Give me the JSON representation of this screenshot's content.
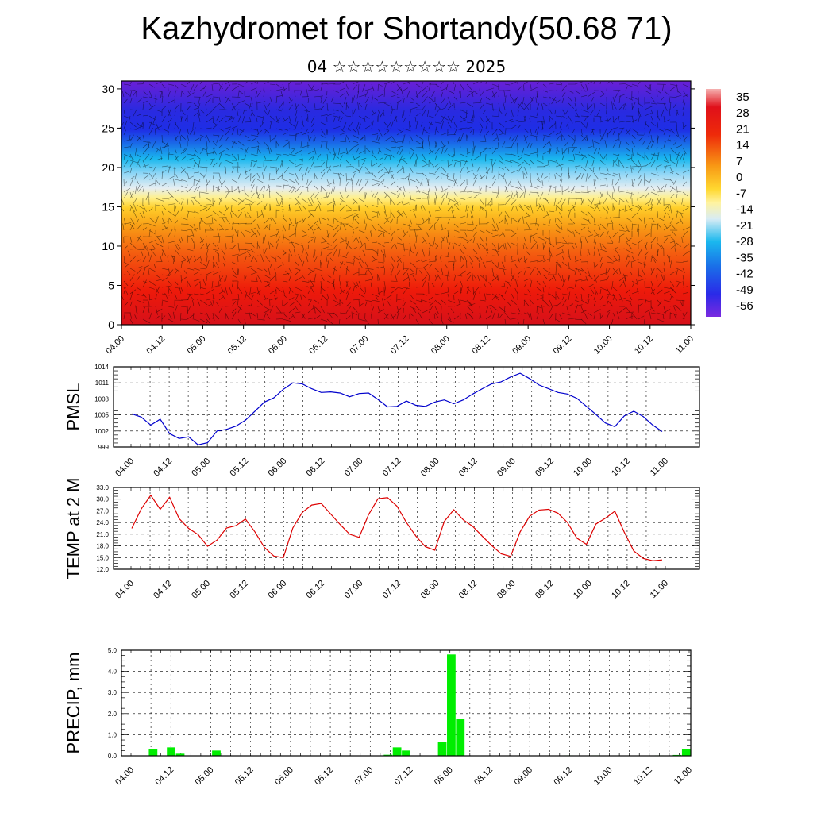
{
  "header": {
    "title": "Kazhydromet for Shortandy(50.68 71)",
    "subtitle": "04 ☆☆☆☆☆☆☆☆☆ 2025"
  },
  "chart_data": [
    {
      "type": "heatmap",
      "xlabel": "",
      "ylabel": "",
      "x_tick_labels": [
        "04.00",
        "04.12",
        "05.00",
        "05.12",
        "06.00",
        "06.12",
        "07.00",
        "07.12",
        "08.00",
        "08.12",
        "09.00",
        "09.12",
        "10.00",
        "10.12",
        "11.00"
      ],
      "ylim": [
        0,
        31
      ],
      "y_ticks": [
        0,
        5,
        10,
        15,
        20,
        25,
        30
      ],
      "color_scale_labels": [
        "35",
        "28",
        "21",
        "14",
        "7",
        "0",
        "-7",
        "-14",
        "-21",
        "-28",
        "-35",
        "-42",
        "-49",
        "-56"
      ],
      "color_range": [
        -63,
        42
      ],
      "colors": {
        "cold": "#6a1fd6",
        "blue": "#1e2ee6",
        "cyan": "#1ab8ee",
        "pale": "#dde8ee",
        "yellow": "#ffe03a",
        "orange": "#f89a15",
        "red": "#ee1a0a"
      },
      "wind_vectors_overlay": true
    },
    {
      "type": "line",
      "ylabel": "PMSL",
      "ylim": [
        999,
        1014
      ],
      "y_tick_labels": [
        "1014",
        "1011",
        "1008",
        "1005",
        "1002",
        "999"
      ],
      "y_ticks": [
        1014,
        1011,
        1008,
        1005,
        1002,
        999
      ],
      "x_tick_labels": [
        "04.00",
        "04.12",
        "05.00",
        "05.12",
        "06.00",
        "06.12",
        "07.00",
        "07.12",
        "08.00",
        "08.12",
        "09.00",
        "09.12",
        "10.00",
        "10.12",
        "11.00"
      ],
      "line_color": "#0000cc",
      "grid": true,
      "values": [
        1005.2,
        1004.6,
        1003.1,
        1004.2,
        1001.5,
        1000.6,
        1000.9,
        999.4,
        999.8,
        1002.0,
        1002.3,
        1002.9,
        1004.0,
        1005.7,
        1007.4,
        1008.2,
        1009.8,
        1011.0,
        1010.8,
        1009.9,
        1009.2,
        1009.3,
        1009.1,
        1008.4,
        1009.0,
        1009.1,
        1007.9,
        1006.5,
        1006.6,
        1007.6,
        1006.8,
        1006.6,
        1007.4,
        1007.8,
        1007.1,
        1007.8,
        1008.9,
        1009.9,
        1010.8,
        1011.2,
        1012.1,
        1012.8,
        1011.8,
        1010.6,
        1009.9,
        1009.2,
        1008.9,
        1008.1,
        1006.6,
        1005.1,
        1003.5,
        1002.8,
        1004.8,
        1005.7,
        1004.7,
        1003.1,
        1001.9
      ]
    },
    {
      "type": "line",
      "ylabel": "TEMP at 2 M",
      "ylim": [
        12,
        33
      ],
      "y_tick_labels": [
        "33.0",
        "30.0",
        "27.0",
        "24.0",
        "21.0",
        "18.0",
        "15.0",
        "12.0"
      ],
      "y_ticks": [
        33,
        30,
        27,
        24,
        21,
        18,
        15,
        12
      ],
      "x_tick_labels": [
        "04.00",
        "04.12",
        "05.00",
        "05.12",
        "06.00",
        "06.12",
        "07.00",
        "07.12",
        "08.00",
        "08.12",
        "09.00",
        "09.12",
        "10.00",
        "10.12",
        "11.00"
      ],
      "line_color": "#dd0000",
      "grid": true,
      "values": [
        22.5,
        27.5,
        31.0,
        27.4,
        30.5,
        25.0,
        22.5,
        20.9,
        17.9,
        19.5,
        22.6,
        23.2,
        24.9,
        21.6,
        17.6,
        15.4,
        15.0,
        22.6,
        26.6,
        28.5,
        28.9,
        26.2,
        23.5,
        21.0,
        20.2,
        26.0,
        30.1,
        30.4,
        28.2,
        24.0,
        20.5,
        17.8,
        16.9,
        24.3,
        27.3,
        24.7,
        23.0,
        20.5,
        18.1,
        16.0,
        15.3,
        21.6,
        25.6,
        27.2,
        27.4,
        26.4,
        24.0,
        20.0,
        18.4,
        23.6,
        25.1,
        26.9,
        21.5,
        16.7,
        14.8,
        14.2,
        14.4
      ]
    },
    {
      "type": "bar",
      "ylabel": "PRECIP, mm",
      "ylim": [
        0,
        5
      ],
      "y_tick_labels": [
        "5.0",
        "4.0",
        "3.0",
        "2.0",
        "1.0",
        "0.0"
      ],
      "y_ticks": [
        5,
        4,
        3,
        2,
        1,
        0
      ],
      "x_tick_labels": [
        "04.00",
        "04.12",
        "05.00",
        "05.12",
        "06.00",
        "06.12",
        "07.00",
        "07.12",
        "08.00",
        "08.12",
        "09.00",
        "09.12",
        "10.00",
        "10.12",
        "11.00"
      ],
      "bar_color": "#00ee00",
      "grid": true,
      "values": [
        0,
        0,
        0,
        0.3,
        0,
        0.4,
        0.1,
        0,
        0,
        0,
        0.25,
        0,
        0,
        0,
        0,
        0,
        0,
        0,
        0,
        0,
        0,
        0,
        0,
        0,
        0,
        0,
        0,
        0,
        0,
        0.05,
        0.4,
        0.25,
        0,
        0,
        0,
        0.65,
        4.8,
        1.75,
        0,
        0,
        0,
        0,
        0,
        0,
        0,
        0,
        0,
        0,
        0,
        0.02,
        0,
        0,
        0.02,
        0,
        0,
        0,
        0,
        0,
        0,
        0.02,
        0,
        0.04,
        0.3
      ]
    }
  ]
}
